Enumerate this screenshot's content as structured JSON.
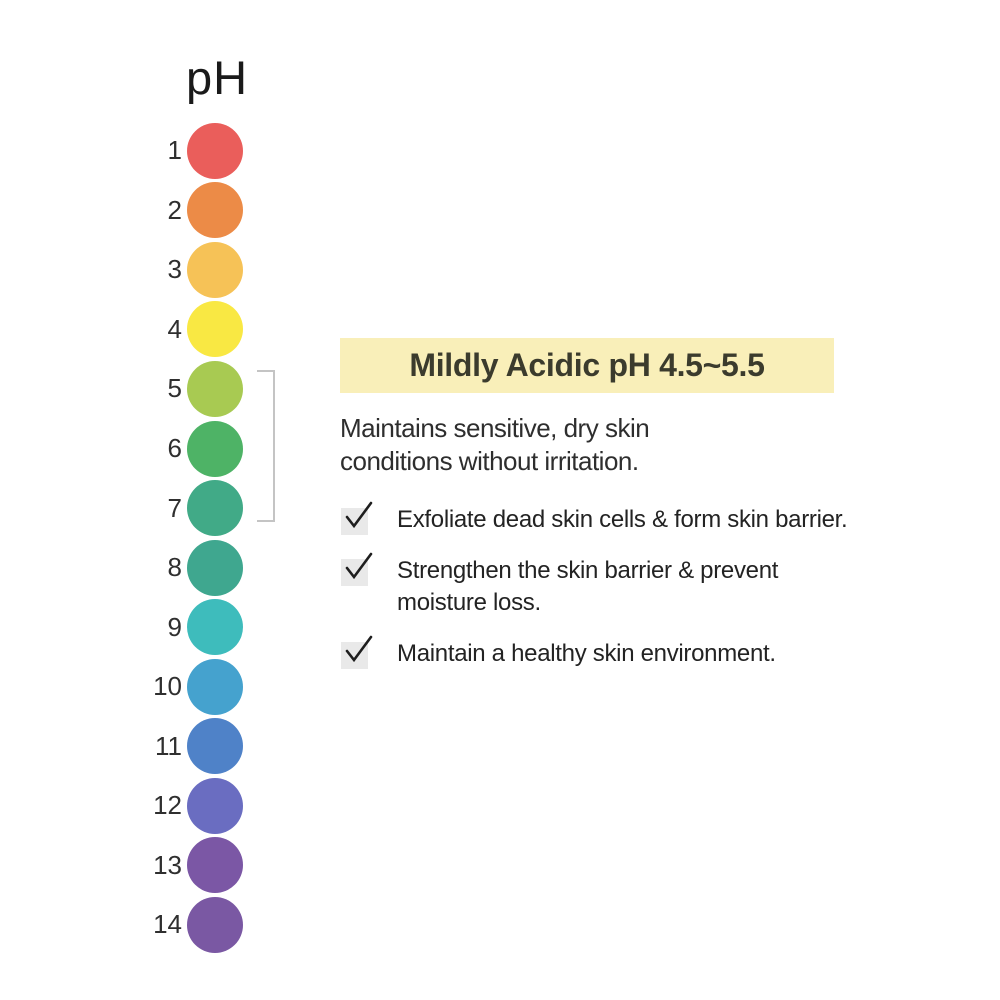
{
  "scale": {
    "title": "pH",
    "items": [
      {
        "label": "1",
        "color": "#ea5e5b"
      },
      {
        "label": "2",
        "color": "#ec8b47"
      },
      {
        "label": "3",
        "color": "#f6c257"
      },
      {
        "label": "4",
        "color": "#f9e843"
      },
      {
        "label": "5",
        "color": "#a8ca52"
      },
      {
        "label": "6",
        "color": "#4eb366"
      },
      {
        "label": "7",
        "color": "#41aa87"
      },
      {
        "label": "8",
        "color": "#3fa78f"
      },
      {
        "label": "9",
        "color": "#3ebcbc"
      },
      {
        "label": "10",
        "color": "#45a2ce"
      },
      {
        "label": "11",
        "color": "#4f82c8"
      },
      {
        "label": "12",
        "color": "#6a6dc1"
      },
      {
        "label": "13",
        "color": "#7b57a5"
      },
      {
        "label": "14",
        "color": "#7a58a3"
      }
    ],
    "highlight_range": {
      "from": "5",
      "to": "7",
      "bracket_color": "#c4c4c4"
    }
  },
  "info": {
    "headline": "Mildly Acidic pH 4.5~5.5",
    "headline_bg": "#f9efb9",
    "description_lines": [
      "Maintains sensitive, dry skin",
      "conditions without irritation."
    ],
    "checklist": [
      {
        "icon": "checkmark-icon",
        "lines": [
          "Exfoliate dead skin cells & form skin barrier."
        ]
      },
      {
        "icon": "checkmark-icon",
        "lines": [
          "Strengthen the skin barrier & prevent",
          "moisture loss."
        ]
      },
      {
        "icon": "checkmark-icon",
        "lines": [
          "Maintain a healthy skin environment."
        ]
      }
    ]
  }
}
